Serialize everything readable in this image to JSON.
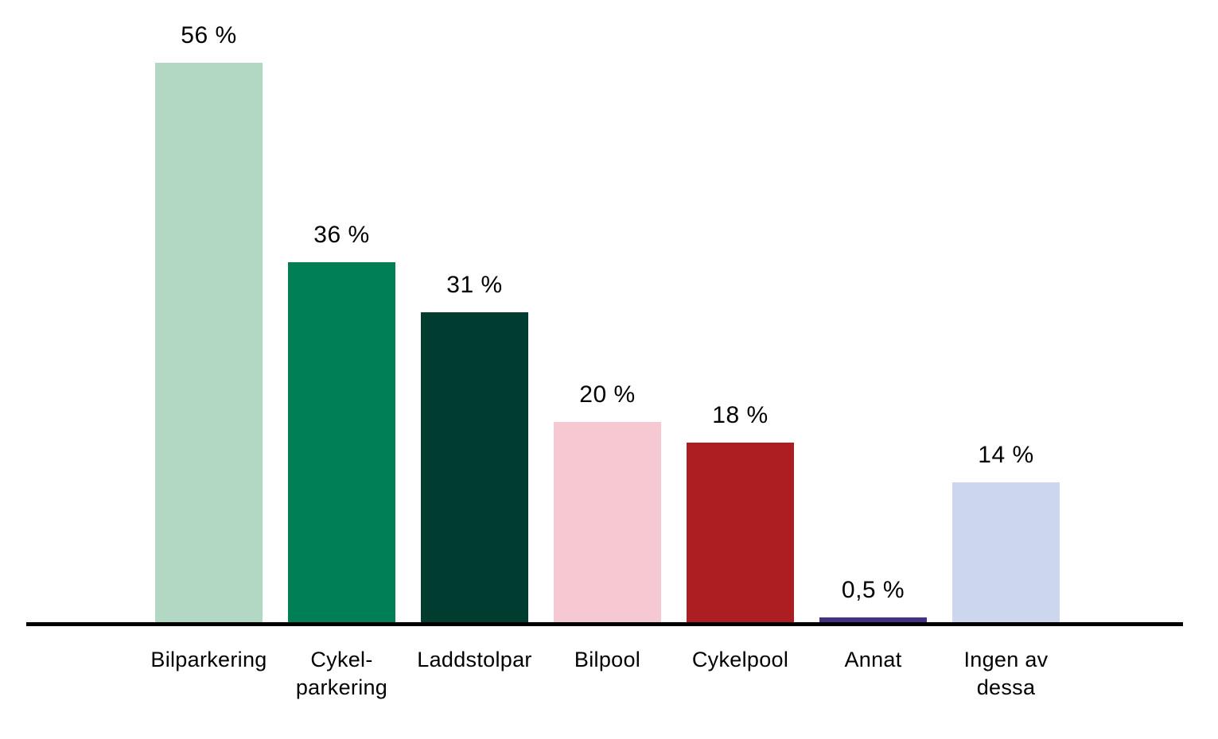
{
  "chart_data": {
    "type": "bar",
    "title": "",
    "xlabel": "",
    "ylabel": "",
    "ylim": [
      0,
      60
    ],
    "unit": "%",
    "grid": false,
    "legend": false,
    "background_color": "#ffffff",
    "axis_color": "#000000",
    "text_color": "#000000",
    "categories": [
      "Bilparkering",
      "Cykel-parkering",
      "Laddstolpar",
      "Bilpool",
      "Cykelpool",
      "Annat",
      "Ingen av dessa"
    ],
    "values": [
      56,
      36,
      31,
      20,
      18,
      0.5,
      14
    ],
    "value_labels": [
      "56 %",
      "36 %",
      "31 %",
      "20 %",
      "18 %",
      "0,5 %",
      "14 %"
    ],
    "category_label_lines": [
      [
        "Bilparkering"
      ],
      [
        "Cykel-",
        "parkering"
      ],
      [
        "Laddstolpar"
      ],
      [
        "Bilpool"
      ],
      [
        "Cykelpool"
      ],
      [
        "Annat"
      ],
      [
        "Ingen av",
        "dessa"
      ]
    ],
    "bar_colors": [
      "#b2d7c2",
      "#007f57",
      "#013c31",
      "#f6c9d2",
      "#ad1e23",
      "#453184",
      "#ccd6ec"
    ]
  }
}
